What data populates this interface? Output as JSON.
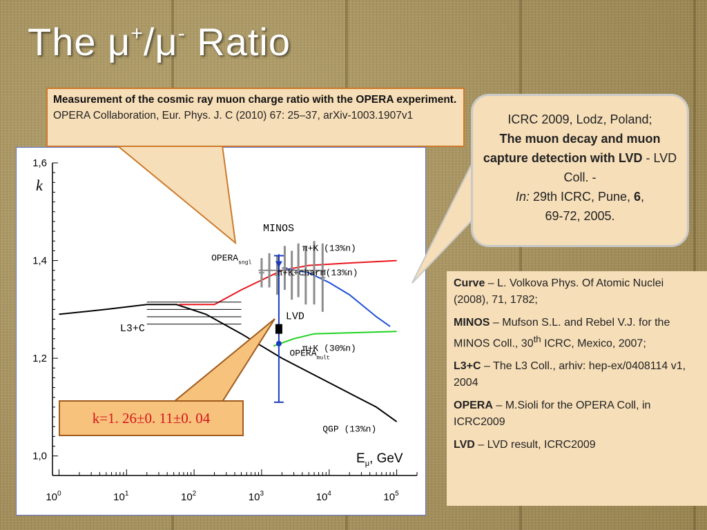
{
  "slide": {
    "title_main": "The μ",
    "title_sup1": "+",
    "title_mid": "/μ",
    "title_sup2": "-",
    "title_end": " Ratio"
  },
  "opera_ref": {
    "bold": "Measurement of the cosmic ray muon charge ratio with the OPERA experiment.",
    "text": " OPERA Collaboration, Eur. Phys. J. C (2010) 67: 25–37, arXiv-1003.1907v1"
  },
  "lvd_ref": {
    "line1": "ICRC 2009, Lodz, Poland;",
    "bold_title": "The muon decay and muon capture detection with LVD",
    "after_title": " - LVD Coll. -",
    "in_label": "In:",
    "conf": " 29th ICRC, Pune, ",
    "vol": "6",
    "pages": ",",
    "pages2": "69-72, 2005."
  },
  "references": [
    {
      "label": "Curve",
      "text": " – L. Volkova Phys. Of Atomic Nuclei (2008), 71, 1782;"
    },
    {
      "label": "MINOS",
      "text_before": " – Mufson S.L. and Rebel V.J. for the MINOS Coll., 30",
      "sup": "th",
      "text_after": " ICRC, Mexico, 2007;"
    },
    {
      "label": "L3+C",
      "text": " – The L3 Coll., arhiv: hep-ex/0408114 v1, 2004"
    },
    {
      "label": "OPERA",
      "text": " – M.Sioli for the OPERA Coll, in ICRC2009"
    },
    {
      "label": "LVD",
      "text": " – LVD result, ICRC2009"
    }
  ],
  "k_result": "k=1. 26±0. 11±0. 04",
  "colors": {
    "accent_red": "#e8151b",
    "accent_blue": "#1f4fd6",
    "accent_green": "#1ed21e",
    "marker_blue": "#1a3ab8",
    "minos_gray": "#8c8c8c",
    "callout_fill": "#f6c27c"
  },
  "chart_data": {
    "type": "line",
    "ylabel": "k",
    "xlabel_main": "E",
    "xlabel_sub": "μ",
    "xlabel_unit": ", GeV",
    "xscale": "log",
    "xlim": [
      0.8,
      200000
    ],
    "ylim": [
      0.96,
      1.6
    ],
    "yticks": [
      {
        "value": 1.0,
        "label": "1,0"
      },
      {
        "value": 1.2,
        "label": "1,2"
      },
      {
        "value": 1.4,
        "label": "1,4"
      },
      {
        "value": 1.6,
        "label": "1,6"
      }
    ],
    "xticks": [
      {
        "value": 1,
        "base": "10",
        "exp": "0"
      },
      {
        "value": 10,
        "base": "10",
        "exp": "1"
      },
      {
        "value": 100,
        "base": "10",
        "exp": "2"
      },
      {
        "value": 1000,
        "base": "10",
        "exp": "3"
      },
      {
        "value": 10000,
        "base": "10",
        "exp": "4"
      },
      {
        "value": 100000,
        "base": "10",
        "exp": "5"
      }
    ],
    "series": [
      {
        "name": "QGP (13%n)",
        "color": "#000000",
        "points": [
          [
            1,
            1.29
          ],
          [
            5,
            1.3
          ],
          [
            20,
            1.31
          ],
          [
            55,
            1.31
          ],
          [
            150,
            1.29
          ],
          [
            500,
            1.25
          ],
          [
            2000,
            1.2
          ],
          [
            10000,
            1.15
          ],
          [
            50000,
            1.1
          ],
          [
            100000,
            1.07
          ]
        ]
      },
      {
        "name": "π+K (13%n)",
        "color": "#e8151b",
        "points": [
          [
            60,
            1.31
          ],
          [
            200,
            1.31
          ],
          [
            500,
            1.34
          ],
          [
            1000,
            1.36
          ],
          [
            2000,
            1.38
          ],
          [
            5000,
            1.39
          ],
          [
            20000,
            1.395
          ],
          [
            100000,
            1.4
          ]
        ]
      },
      {
        "name": "π+K+charm(13%n)",
        "color": "#1f4fd6",
        "points": [
          [
            2000,
            1.385
          ],
          [
            5000,
            1.375
          ],
          [
            10000,
            1.355
          ],
          [
            20000,
            1.33
          ],
          [
            50000,
            1.285
          ],
          [
            80000,
            1.265
          ]
        ]
      },
      {
        "name": "π+K (30%n)",
        "color": "#1ed21e",
        "points": [
          [
            1500,
            1.225
          ],
          [
            3000,
            1.24
          ],
          [
            6000,
            1.25
          ],
          [
            20000,
            1.252
          ],
          [
            100000,
            1.255
          ]
        ]
      }
    ],
    "series_labels": [
      {
        "text": "π+K (13%n)",
        "x": 4000,
        "y": 1.42
      },
      {
        "text": "π+K+charm(13%n)",
        "x": 1700,
        "y": 1.37
      },
      {
        "text": "π+K (30%n)",
        "x": 4000,
        "y": 1.215
      },
      {
        "text": "QGP (13%n)",
        "x": 8000,
        "y": 1.05
      }
    ],
    "measurements": {
      "L3+C": {
        "label": "L3+C",
        "x_min": 20,
        "x_max": 500,
        "levels": [
          1.27,
          1.285,
          1.3,
          1.315
        ]
      },
      "OPERA_sngl": {
        "label": "OPERA",
        "sub": "sngl",
        "x": 1800,
        "y": 1.393,
        "err": 0.02
      },
      "OPERA_mult": {
        "label": "OPERA",
        "sub": "mult",
        "x": 1800,
        "y": 1.23,
        "err": 0.02
      },
      "LVD": {
        "label": "LVD",
        "x": 1800,
        "y": 1.26,
        "stat_err": 0.11,
        "sys_err": 0.04
      },
      "MINOS": {
        "label": "MINOS",
        "points": [
          {
            "x": 1000,
            "y": 1.375,
            "err": 0.03
          },
          {
            "x": 1300,
            "y": 1.38,
            "err": 0.035
          },
          {
            "x": 1700,
            "y": 1.37,
            "err": 0.04
          },
          {
            "x": 2200,
            "y": 1.385,
            "err": 0.045
          },
          {
            "x": 2800,
            "y": 1.37,
            "err": 0.05
          },
          {
            "x": 3500,
            "y": 1.38,
            "err": 0.055
          },
          {
            "x": 4500,
            "y": 1.37,
            "err": 0.06
          },
          {
            "x": 6000,
            "y": 1.375,
            "err": 0.065
          },
          {
            "x": 8000,
            "y": 1.365,
            "err": 0.07
          }
        ]
      }
    }
  }
}
